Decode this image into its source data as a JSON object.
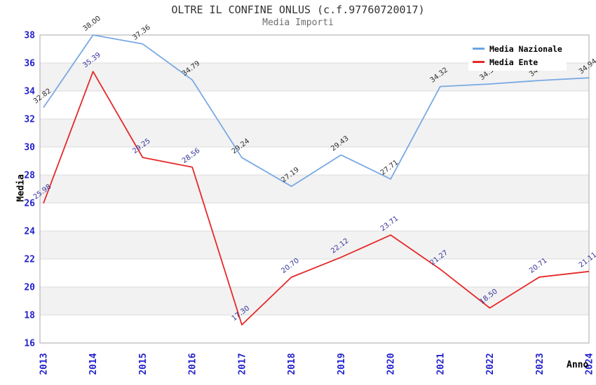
{
  "chart": {
    "title": "OLTRE IL CONFINE ONLUS (c.f.97760720017)",
    "subtitle": "Media Importi",
    "legend": {
      "items": [
        {
          "label": "Media Nazionale",
          "color": "#6BA4E2"
        },
        {
          "label": "Media Ente",
          "color": "#E62929"
        }
      ]
    }
  },
  "chart_data": {
    "type": "line",
    "title": "OLTRE IL CONFINE ONLUS (c.f.97760720017)",
    "subtitle": "Media Importi",
    "xlabel": "Anno",
    "ylabel": "Media",
    "x": [
      "2013",
      "2014",
      "2015",
      "2016",
      "2017",
      "2018",
      "2019",
      "2020",
      "2021",
      "2022",
      "2023",
      "2024"
    ],
    "ylim": [
      16,
      38
    ],
    "y_tick_step": 2,
    "y_ticks": [
      16,
      18,
      20,
      22,
      24,
      26,
      28,
      30,
      32,
      34,
      36,
      38
    ],
    "grid": true,
    "legend_position": "top-right",
    "series": [
      {
        "name": "Media Nazionale",
        "color": "#79A9E3",
        "label_color": "#2b2b2b",
        "values": [
          32.82,
          38.0,
          37.36,
          34.79,
          29.24,
          27.19,
          29.43,
          27.71,
          34.32,
          34.5,
          34.75,
          34.94
        ]
      },
      {
        "name": "Media Ente",
        "color": "#E62929",
        "label_color": "#33339b",
        "values": [
          25.98,
          35.39,
          29.25,
          28.56,
          17.3,
          20.7,
          22.12,
          23.71,
          21.27,
          18.5,
          20.71,
          21.11
        ]
      }
    ],
    "style": {
      "band_color": "#F2F2F2",
      "grid_color": "#DCDCDC",
      "border_color": "#A9A9A9",
      "tick_label_color": "#2222CC",
      "title_color": "#333333",
      "subtitle_color": "#6E6E6E"
    }
  }
}
